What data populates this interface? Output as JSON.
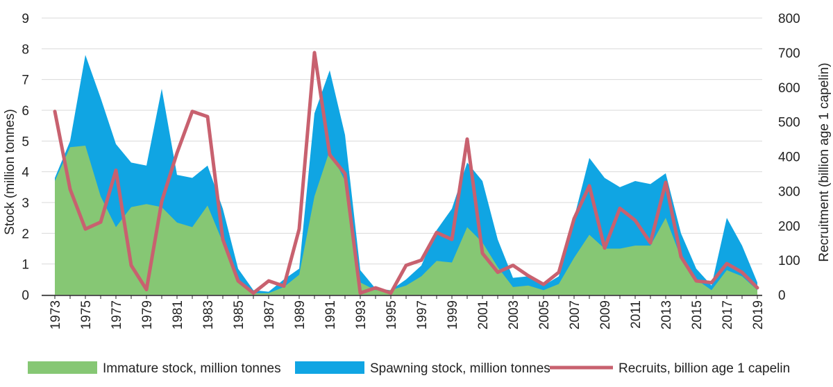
{
  "chart_data": {
    "type": "area",
    "years": [
      1973,
      1974,
      1975,
      1976,
      1977,
      1978,
      1979,
      1980,
      1981,
      1982,
      1983,
      1984,
      1985,
      1986,
      1987,
      1988,
      1989,
      1990,
      1991,
      1992,
      1993,
      1994,
      1995,
      1996,
      1997,
      1998,
      1999,
      2000,
      2001,
      2002,
      2003,
      2004,
      2005,
      2006,
      2007,
      2008,
      2009,
      2010,
      2011,
      2012,
      2013,
      2014,
      2015,
      2016,
      2017,
      2018,
      2019
    ],
    "x_tick_labels": [
      "1973",
      "1975",
      "1977",
      "1979",
      "1981",
      "1983",
      "1985",
      "1987",
      "1989",
      "1991",
      "1993",
      "1995",
      "1997",
      "1999",
      "2001",
      "2003",
      "2005",
      "2007",
      "2009",
      "2011",
      "2013",
      "2015",
      "2017",
      "2019"
    ],
    "left_axis": {
      "label": "Stock (million tonnes)",
      "range": [
        0,
        9
      ],
      "ticks": [
        "0",
        "1",
        "2",
        "3",
        "4",
        "5",
        "6",
        "7",
        "8",
        "9"
      ]
    },
    "right_axis": {
      "label": "Recruitment (billion age 1 capelin)",
      "range": [
        0,
        800
      ],
      "ticks": [
        "0",
        "100",
        "200",
        "300",
        "400",
        "500",
        "600",
        "700",
        "800"
      ]
    },
    "series": [
      {
        "name": "Immature stock, million tonnes",
        "axis": "left",
        "color": "#86c774",
        "values": [
          3.7,
          4.8,
          4.85,
          3.2,
          2.2,
          2.85,
          2.95,
          2.85,
          2.35,
          2.2,
          2.9,
          1.7,
          0.4,
          0.05,
          0.05,
          0.25,
          0.65,
          3.2,
          4.7,
          3.7,
          0.4,
          0.15,
          0.15,
          0.3,
          0.6,
          1.1,
          1.05,
          2.2,
          1.7,
          0.9,
          0.25,
          0.3,
          0.15,
          0.35,
          1.2,
          1.95,
          1.5,
          1.5,
          1.6,
          1.6,
          2.5,
          1.2,
          0.5,
          0.15,
          0.8,
          0.6,
          0.15
        ]
      },
      {
        "name": "Spawning stock, million tonnes",
        "axis": "left",
        "color": "#10a5e3",
        "values": [
          3.8,
          5.0,
          7.8,
          6.4,
          4.9,
          4.3,
          4.2,
          6.7,
          3.9,
          3.8,
          4.2,
          2.8,
          0.85,
          0.15,
          0.1,
          0.5,
          0.85,
          5.9,
          7.3,
          5.2,
          0.8,
          0.2,
          0.15,
          0.5,
          0.95,
          2.1,
          2.8,
          4.3,
          3.7,
          1.8,
          0.55,
          0.6,
          0.3,
          0.6,
          2.5,
          4.45,
          3.8,
          3.5,
          3.7,
          3.6,
          3.95,
          2.0,
          0.85,
          0.3,
          2.5,
          1.6,
          0.4
        ]
      },
      {
        "name": "Recruits, billion age 1 capelin",
        "axis": "right",
        "color": "#c8616f",
        "values": [
          530,
          305,
          190,
          210,
          360,
          85,
          15,
          270,
          410,
          530,
          515,
          160,
          40,
          5,
          40,
          25,
          190,
          700,
          405,
          350,
          5,
          20,
          5,
          85,
          100,
          180,
          160,
          450,
          120,
          65,
          85,
          55,
          30,
          65,
          220,
          315,
          135,
          250,
          215,
          150,
          325,
          110,
          40,
          35,
          90,
          65,
          20
        ]
      }
    ]
  }
}
